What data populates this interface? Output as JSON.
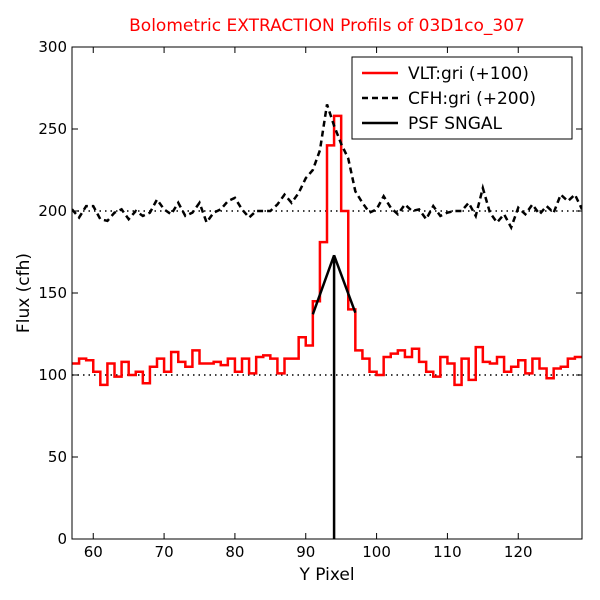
{
  "chart_data": {
    "type": "line",
    "title": "Bolometric EXTRACTION Profils of 03D1co_307",
    "title_color": "#ff0000",
    "xlabel": "Y Pixel",
    "ylabel": "Flux (cfh)",
    "xlim": [
      57,
      129
    ],
    "ylim": [
      0,
      300
    ],
    "xticks": [
      60,
      70,
      80,
      90,
      100,
      110,
      120
    ],
    "yticks": [
      0,
      50,
      100,
      150,
      200,
      250,
      300
    ],
    "grid": false,
    "legend_position": "top-right",
    "reference_lines": [
      100,
      200
    ],
    "series": [
      {
        "name": "VLT:gri (+100)",
        "style": "steps",
        "color": "#ff0000",
        "x": [
          57,
          58,
          59,
          60,
          61,
          62,
          63,
          64,
          65,
          66,
          67,
          68,
          69,
          70,
          71,
          72,
          73,
          74,
          75,
          76,
          77,
          78,
          79,
          80,
          81,
          82,
          83,
          84,
          85,
          86,
          87,
          88,
          89,
          90,
          91,
          92,
          93,
          94,
          95,
          96,
          97,
          98,
          99,
          100,
          101,
          102,
          103,
          104,
          105,
          106,
          107,
          108,
          109,
          110,
          111,
          112,
          113,
          114,
          115,
          116,
          117,
          118,
          119,
          120,
          121,
          122,
          123,
          124,
          125,
          126,
          127,
          128
        ],
        "y": [
          107,
          110,
          109,
          102,
          94,
          107,
          99,
          108,
          100,
          102,
          95,
          105,
          110,
          102,
          114,
          108,
          105,
          115,
          107,
          107,
          108,
          106,
          110,
          102,
          110,
          101,
          111,
          112,
          110,
          101,
          110,
          110,
          123,
          118,
          145,
          181,
          240,
          258,
          200,
          140,
          115,
          110,
          102,
          100,
          111,
          113,
          115,
          111,
          116,
          108,
          102,
          99,
          111,
          107,
          94,
          110,
          97,
          117,
          108,
          107,
          111,
          102,
          105,
          109,
          101,
          110,
          104,
          98,
          104,
          105,
          110,
          111
        ]
      },
      {
        "name": "CFH:gri (+200)",
        "style": "dashed",
        "color": "#000000",
        "x": [
          57,
          58,
          59,
          60,
          61,
          62,
          63,
          64,
          65,
          66,
          67,
          68,
          69,
          70,
          71,
          72,
          73,
          74,
          75,
          76,
          77,
          78,
          79,
          80,
          81,
          82,
          83,
          84,
          85,
          86,
          87,
          88,
          89,
          90,
          91,
          92,
          93,
          94,
          95,
          96,
          97,
          98,
          99,
          100,
          101,
          102,
          103,
          104,
          105,
          106,
          107,
          108,
          109,
          110,
          111,
          112,
          113,
          114,
          115,
          116,
          117,
          118,
          119,
          120,
          121,
          122,
          123,
          124,
          125,
          126,
          127,
          128,
          129
        ],
        "y": [
          201,
          196,
          203,
          203,
          195,
          194,
          199,
          201,
          195,
          200,
          197,
          199,
          207,
          201,
          198,
          205,
          197,
          199,
          205,
          193,
          199,
          201,
          206,
          208,
          201,
          196,
          200,
          200,
          200,
          204,
          210,
          205,
          211,
          220,
          225,
          237,
          265,
          252,
          241,
          232,
          212,
          205,
          199,
          201,
          209,
          202,
          198,
          204,
          200,
          201,
          195,
          203,
          197,
          199,
          200,
          200,
          205,
          197,
          214,
          199,
          193,
          198,
          190,
          202,
          198,
          204,
          198,
          203,
          199,
          210,
          206,
          210,
          201
        ]
      },
      {
        "name": "PSF SNGAL",
        "style": "solid",
        "color": "#000000",
        "x": [
          91,
          94,
          94,
          94,
          97
        ],
        "y": [
          137,
          173,
          0,
          173,
          138
        ]
      }
    ]
  }
}
